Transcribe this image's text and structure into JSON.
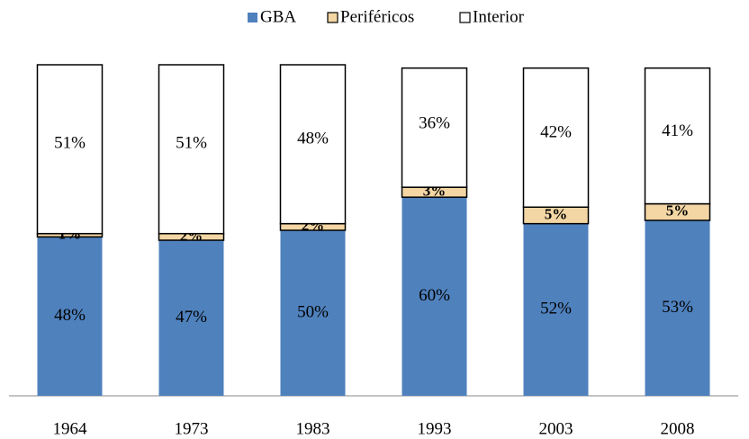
{
  "chart_data": {
    "type": "stacked_bar",
    "categories": [
      "1964",
      "1973",
      "1983",
      "1993",
      "2003",
      "2008"
    ],
    "series": [
      {
        "name": "GBA",
        "color": "#4f81bd",
        "values": [
          48,
          47,
          50,
          60,
          52,
          53
        ],
        "value_labels": [
          "48%",
          "47%",
          "50%",
          "60%",
          "52%",
          "53%"
        ]
      },
      {
        "name": "Periféricos",
        "color": "#f3d6a4",
        "values": [
          1,
          2,
          2,
          3,
          5,
          5
        ],
        "value_labels": [
          "1%",
          "2%",
          "2%",
          "3%",
          "5%",
          "5%"
        ]
      },
      {
        "name": "Interior",
        "color": "#ffffff",
        "values": [
          51,
          51,
          48,
          36,
          42,
          41
        ],
        "value_labels": [
          "51%",
          "51%",
          "48%",
          "36%",
          "42%",
          "41%"
        ]
      }
    ],
    "ylim": [
      0,
      100
    ],
    "legend": "top"
  }
}
